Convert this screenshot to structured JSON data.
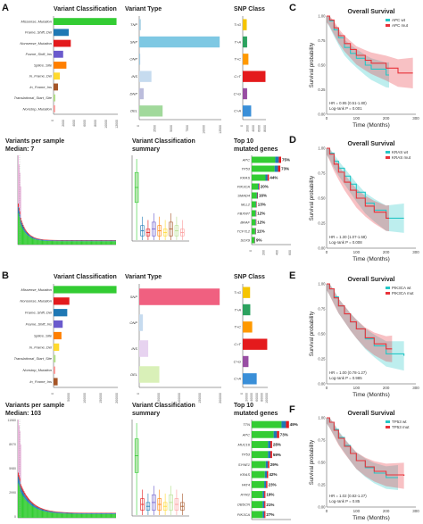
{
  "colors": {
    "missense": "#33cc33",
    "frame_shift_del": "#1f78b4",
    "nonsense": "#e31a1c",
    "frame_shift_ins": "#6a5acd",
    "splice": "#ff7f00",
    "in_frame_del": "#ffd92f",
    "in_frame_ins": "#a65628",
    "translational_start": "#b2df8a",
    "nonstop": "#fb9a99",
    "snp_tg": "#f5c400",
    "snp_ta": "#2ca25f",
    "snp_tc": "#ff9900",
    "snp_ct": "#e41a1c",
    "snp_cg": "#984ea3",
    "snp_ca": "#3a8fd8",
    "wt": "#26c6c6",
    "mut": "#e8333a"
  },
  "panels": {
    "A": {
      "label": "A",
      "variant_classification": {
        "title": "Variant Classification",
        "labels": [
          "Missense_Mutation",
          "Frame_Shift_Del",
          "Nonsense_Mutation",
          "Frame_Shift_Ins",
          "Splice_Site",
          "In_Frame_Del",
          "In_Frame_Ins",
          "Translational_Start_Site",
          "Nonstop_Mutation"
        ],
        "values": [
          12000,
          700,
          900,
          280,
          500,
          120,
          60,
          10,
          8
        ],
        "ticks": [
          "0",
          "2000",
          "4000",
          "6000",
          "8000",
          "10000",
          "12000"
        ]
      },
      "variant_type": {
        "title": "Variant Type",
        "labels": [
          "TNP",
          "SNP",
          "ONP",
          "INS",
          "DNP",
          "DEL"
        ],
        "values": [
          5,
          13000,
          2,
          300,
          40,
          1100
        ],
        "ticks": [
          "0",
          "2500",
          "5000",
          "7500",
          "10000",
          "12500"
        ]
      },
      "snp_class": {
        "title": "SNP Class",
        "labels": [
          "T>G",
          "T>A",
          "T>C",
          "C>T",
          "C>G",
          "C>A"
        ],
        "values": [
          250,
          300,
          500,
          8000,
          300,
          1100
        ],
        "ticks": [
          "0",
          "2000",
          "4000",
          "6000",
          "8000"
        ]
      },
      "variants_per_sample": {
        "title": "Variants per sample",
        "median": "Median: 7"
      },
      "vc_summary": {
        "title": "Variant Classification",
        "title2": "summary"
      },
      "top10": {
        "title": "Top 10",
        "title2": "mutated genes",
        "genes": [
          "APC",
          "TP53",
          "KRAS",
          "PIK3CA",
          "SMAD4",
          "MLL2",
          "FBXW7",
          "BRAF",
          "TCF7L2",
          "SOX9"
        ],
        "pcts": [
          "75%",
          "73%",
          "44%",
          "20%",
          "16%",
          "13%",
          "12%",
          "12%",
          "11%",
          "9%"
        ],
        "values": [
          75,
          73,
          44,
          20,
          16,
          13,
          12,
          12,
          11,
          9
        ],
        "ticks": [
          "0",
          "200",
          "400",
          "600"
        ]
      }
    },
    "B": {
      "label": "B",
      "variant_classification": {
        "title": "Variant Classification",
        "labels": [
          "Missense_Mutation",
          "Nonsense_Mutation",
          "Frame_Shift_Del",
          "Frame_Shift_Ins",
          "Splice_Site",
          "In_Frame_Del",
          "Translational_Start_Site",
          "Nonstop_Mutation",
          "In_Frame_Ins"
        ],
        "values": [
          19000,
          1200,
          900,
          400,
          300,
          150,
          20,
          15,
          80
        ],
        "ticks": [
          "0",
          "50000",
          "100000",
          "150000",
          "200000"
        ]
      },
      "variant_type": {
        "title": "Variant Type",
        "labels": [
          "SNP",
          "ONP",
          "INS",
          "DEL"
        ],
        "values": [
          24000,
          50,
          300,
          1500
        ],
        "ticks": [
          "0",
          "50000",
          "100000",
          "150000",
          "200000"
        ]
      },
      "snp_class": {
        "title": "SNP Class",
        "labels": [
          "T>G",
          "T>A",
          "T>C",
          "C>T",
          "C>G",
          "C>A"
        ],
        "values": [
          1800,
          1900,
          3000,
          20000,
          1100,
          6500
        ],
        "ticks": [
          "0",
          "20000",
          "40000",
          "60000",
          "80000",
          "100000"
        ]
      },
      "variants_per_sample": {
        "title": "Variants per sample",
        "median": "Median: 103",
        "yticks": [
          "11960",
          "8970",
          "5980",
          "2990",
          "0"
        ]
      },
      "vc_summary": {
        "title": "Variant Classification",
        "title2": "summary"
      },
      "top10": {
        "title": "Top 10",
        "title2": "mutated genes",
        "genes": [
          "TTN",
          "APC",
          "MUC16",
          "TP53",
          "SYNE1",
          "KRAS",
          "FAT4",
          "RYR2",
          "OBSCN",
          "PIK3CA"
        ],
        "pcts": [
          "49%",
          "73%",
          "28%",
          "59%",
          "29%",
          "42%",
          "23%",
          "19%",
          "21%",
          "27%"
        ],
        "values": [
          95,
          70,
          52,
          52,
          45,
          42,
          40,
          35,
          35,
          35
        ],
        "ticks": [
          "0",
          "1000",
          "2000",
          "3000"
        ]
      }
    }
  },
  "survival": [
    {
      "label": "C",
      "title": "Overall Survival",
      "legend": [
        "APC wt",
        "APC mut"
      ],
      "hr": "HR = 0.95 (0.51-1.80)",
      "p": "Log-rank P = 0.001",
      "xlabel": "Time (Months)",
      "ylabel": "Survival probability",
      "xticks": [
        "0",
        "100",
        "200",
        "300"
      ],
      "yticks": [
        "0.00",
        "0.25",
        "0.50",
        "0.75",
        "1.00"
      ],
      "wt_curve": [
        [
          0,
          1
        ],
        [
          10,
          0.95
        ],
        [
          25,
          0.86
        ],
        [
          40,
          0.78
        ],
        [
          60,
          0.68
        ],
        [
          80,
          0.62
        ],
        [
          100,
          0.57
        ],
        [
          130,
          0.5
        ],
        [
          150,
          0.46
        ],
        [
          200,
          0.4
        ],
        [
          210,
          0.4
        ]
      ],
      "mut_curve": [
        [
          0,
          1
        ],
        [
          10,
          0.96
        ],
        [
          25,
          0.88
        ],
        [
          40,
          0.8
        ],
        [
          60,
          0.72
        ],
        [
          80,
          0.66
        ],
        [
          100,
          0.6
        ],
        [
          130,
          0.55
        ],
        [
          150,
          0.52
        ],
        [
          200,
          0.47
        ],
        [
          240,
          0.42
        ],
        [
          290,
          0.42
        ]
      ]
    },
    {
      "label": "D",
      "title": "Overall Survival",
      "legend": [
        "KRAS wt",
        "KRAS mut"
      ],
      "hr": "HR = 1.30 (1.07-1.58)",
      "p": "Log-rank P = 0.008",
      "xlabel": "Time (Months)",
      "ylabel": "Survival probability",
      "xticks": [
        "0",
        "100",
        "200",
        "300"
      ],
      "yticks": [
        "0.00",
        "0.25",
        "0.50",
        "0.75",
        "1.00"
      ],
      "wt_curve": [
        [
          0,
          1
        ],
        [
          10,
          0.95
        ],
        [
          25,
          0.87
        ],
        [
          40,
          0.8
        ],
        [
          60,
          0.72
        ],
        [
          80,
          0.64
        ],
        [
          100,
          0.56
        ],
        [
          130,
          0.45
        ],
        [
          160,
          0.38
        ],
        [
          200,
          0.3
        ],
        [
          260,
          0.3
        ]
      ],
      "mut_curve": [
        [
          0,
          1
        ],
        [
          10,
          0.94
        ],
        [
          25,
          0.84
        ],
        [
          40,
          0.76
        ],
        [
          60,
          0.66
        ],
        [
          80,
          0.58
        ],
        [
          100,
          0.5
        ],
        [
          130,
          0.42
        ],
        [
          160,
          0.36
        ],
        [
          200,
          0.3
        ],
        [
          210,
          0.3
        ]
      ]
    },
    {
      "label": "E",
      "title": "Overall Survival",
      "legend": [
        "PIK3CA wt",
        "PIK3CA mut"
      ],
      "hr": "HR = 1.00 (0.78-1.27)",
      "p": "Log-rank P = 0.985",
      "xlabel": "Time (Months)",
      "ylabel": "Survival probability",
      "xticks": [
        "0",
        "100",
        "200",
        "300"
      ],
      "yticks": [
        "0.00",
        "0.25",
        "0.50",
        "0.75",
        "1.00"
      ],
      "wt_curve": [
        [
          0,
          1
        ],
        [
          10,
          0.95
        ],
        [
          25,
          0.87
        ],
        [
          40,
          0.78
        ],
        [
          60,
          0.7
        ],
        [
          80,
          0.62
        ],
        [
          100,
          0.55
        ],
        [
          130,
          0.45
        ],
        [
          160,
          0.38
        ],
        [
          200,
          0.3
        ],
        [
          260,
          0.28
        ]
      ],
      "mut_curve": [
        [
          0,
          1
        ],
        [
          10,
          0.95
        ],
        [
          25,
          0.86
        ],
        [
          40,
          0.78
        ],
        [
          60,
          0.7
        ],
        [
          80,
          0.62
        ],
        [
          100,
          0.55
        ],
        [
          130,
          0.46
        ],
        [
          160,
          0.4
        ],
        [
          200,
          0.35
        ],
        [
          220,
          0.35
        ]
      ]
    },
    {
      "label": "F",
      "title": "Overall Survival",
      "legend": [
        "TP53 wt",
        "TP53 mut"
      ],
      "hr": "HR = 1.02 (0.82-1.27)",
      "p": "Log-rank P = 0.85",
      "xlabel": "Time (Months)",
      "ylabel": "Survival probability",
      "xticks": [
        "0",
        "100",
        "200",
        "300"
      ],
      "yticks": [
        "0.00",
        "0.25",
        "0.50",
        "0.75",
        "1.00"
      ],
      "wt_curve": [
        [
          0,
          1
        ],
        [
          10,
          0.95
        ],
        [
          25,
          0.87
        ],
        [
          40,
          0.78
        ],
        [
          60,
          0.69
        ],
        [
          80,
          0.6
        ],
        [
          100,
          0.52
        ],
        [
          130,
          0.44
        ],
        [
          160,
          0.38
        ],
        [
          200,
          0.33
        ],
        [
          240,
          0.33
        ]
      ],
      "mut_curve": [
        [
          0,
          1
        ],
        [
          10,
          0.95
        ],
        [
          25,
          0.86
        ],
        [
          40,
          0.77
        ],
        [
          60,
          0.68
        ],
        [
          80,
          0.6
        ],
        [
          100,
          0.52
        ],
        [
          130,
          0.45
        ],
        [
          160,
          0.4
        ],
        [
          200,
          0.36
        ],
        [
          260,
          0.35
        ]
      ]
    }
  ],
  "chart_data": [
    {
      "type": "bar",
      "panel": "A",
      "title": "Variant Classification",
      "categories": [
        "Missense_Mutation",
        "Frame_Shift_Del",
        "Nonsense_Mutation",
        "Frame_Shift_Ins",
        "Splice_Site",
        "In_Frame_Del",
        "In_Frame_Ins",
        "Translational_Start_Site",
        "Nonstop_Mutation"
      ],
      "values": [
        12000,
        700,
        900,
        280,
        500,
        120,
        60,
        10,
        8
      ]
    },
    {
      "type": "bar",
      "panel": "A",
      "title": "Variant Type",
      "categories": [
        "TNP",
        "SNP",
        "ONP",
        "INS",
        "DNP",
        "DEL"
      ],
      "values": [
        5,
        13000,
        2,
        300,
        40,
        1100
      ]
    },
    {
      "type": "bar",
      "panel": "A",
      "title": "SNP Class",
      "categories": [
        "T>G",
        "T>A",
        "T>C",
        "C>T",
        "C>G",
        "C>A"
      ],
      "values": [
        250,
        300,
        500,
        8000,
        300,
        1100
      ]
    },
    {
      "type": "bar",
      "panel": "A",
      "title": "Top 10 mutated genes",
      "categories": [
        "APC",
        "TP53",
        "KRAS",
        "PIK3CA",
        "SMAD4",
        "MLL2",
        "FBXW7",
        "BRAF",
        "TCF7L2",
        "SOX9"
      ],
      "values": [
        75,
        73,
        44,
        20,
        16,
        13,
        12,
        12,
        11,
        9
      ]
    },
    {
      "type": "bar",
      "panel": "B",
      "title": "Variant Classification",
      "categories": [
        "Missense_Mutation",
        "Nonsense_Mutation",
        "Frame_Shift_Del",
        "Frame_Shift_Ins",
        "Splice_Site",
        "In_Frame_Del",
        "Translational_Start_Site",
        "Nonstop_Mutation",
        "In_Frame_Ins"
      ],
      "values": [
        19000,
        1200,
        900,
        400,
        300,
        150,
        20,
        15,
        80
      ]
    },
    {
      "type": "bar",
      "panel": "B",
      "title": "Variant Type",
      "categories": [
        "SNP",
        "ONP",
        "INS",
        "DEL"
      ],
      "values": [
        24000,
        50,
        300,
        1500
      ]
    },
    {
      "type": "bar",
      "panel": "B",
      "title": "SNP Class",
      "categories": [
        "T>G",
        "T>A",
        "T>C",
        "C>T",
        "C>G",
        "C>A"
      ],
      "values": [
        1800,
        1900,
        3000,
        20000,
        1100,
        6500
      ]
    },
    {
      "type": "bar",
      "panel": "B",
      "title": "Top 10 mutated genes",
      "categories": [
        "TTN",
        "APC",
        "MUC16",
        "TP53",
        "SYNE1",
        "KRAS",
        "FAT4",
        "RYR2",
        "OBSCN",
        "PIK3CA"
      ],
      "values": [
        95,
        70,
        52,
        52,
        45,
        42,
        40,
        35,
        35,
        35
      ]
    },
    {
      "type": "line",
      "panel": "C",
      "title": "Overall Survival",
      "xlabel": "Time (Months)",
      "ylabel": "Survival probability",
      "xlim": [
        0,
        300
      ],
      "ylim": [
        0,
        1
      ],
      "series": [
        {
          "name": "APC wt"
        },
        {
          "name": "APC mut"
        }
      ]
    },
    {
      "type": "line",
      "panel": "D",
      "title": "Overall Survival",
      "xlabel": "Time (Months)",
      "ylabel": "Survival probability",
      "xlim": [
        0,
        300
      ],
      "ylim": [
        0,
        1
      ],
      "series": [
        {
          "name": "KRAS wt"
        },
        {
          "name": "KRAS mut"
        }
      ]
    },
    {
      "type": "line",
      "panel": "E",
      "title": "Overall Survival",
      "xlabel": "Time (Months)",
      "ylabel": "Survival probability",
      "xlim": [
        0,
        300
      ],
      "ylim": [
        0,
        1
      ],
      "series": [
        {
          "name": "PIK3CA wt"
        },
        {
          "name": "PIK3CA mut"
        }
      ]
    },
    {
      "type": "line",
      "panel": "F",
      "title": "Overall Survival",
      "xlabel": "Time (Months)",
      "ylabel": "Survival probability",
      "xlim": [
        0,
        300
      ],
      "ylim": [
        0,
        1
      ],
      "series": [
        {
          "name": "TP53 wt"
        },
        {
          "name": "TP53 mut"
        }
      ]
    }
  ]
}
